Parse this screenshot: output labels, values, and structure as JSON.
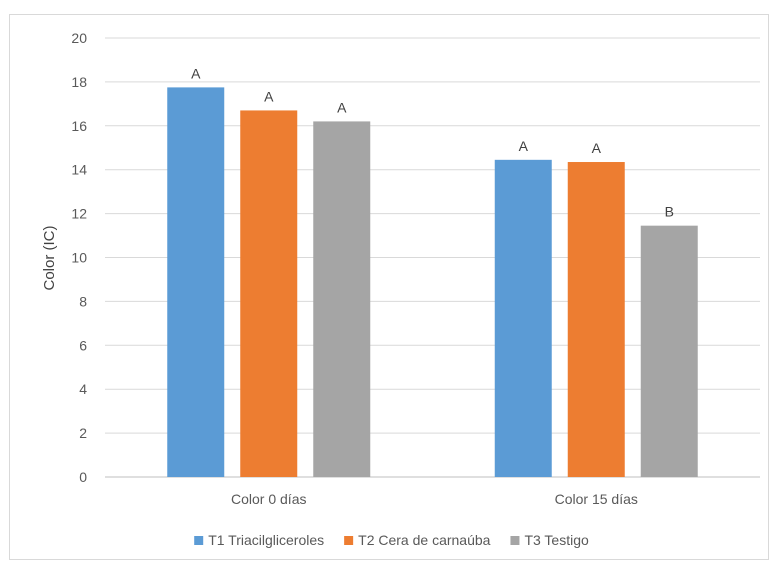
{
  "chart_data": {
    "type": "bar",
    "categories": [
      "Color 0 días",
      "Color 15 días"
    ],
    "series": [
      {
        "name": "T1 Triacilgliceroles",
        "color": "#5b9bd5",
        "values": [
          17.75,
          14.45
        ],
        "labels": [
          "A",
          "A"
        ]
      },
      {
        "name": "T2 Cera de carnaúba",
        "color": "#ed7d31",
        "values": [
          16.7,
          14.35
        ],
        "labels": [
          "A",
          "A"
        ]
      },
      {
        "name": "T3 Testigo",
        "color": "#a5a5a5",
        "values": [
          16.2,
          11.45
        ],
        "labels": [
          "A",
          "B"
        ]
      }
    ],
    "ylabel": "Color (IC)",
    "ylim": [
      0,
      20
    ],
    "yticks": [
      0,
      2,
      4,
      6,
      8,
      10,
      12,
      14,
      16,
      18,
      20
    ],
    "grid": true,
    "legend": "bottom"
  }
}
